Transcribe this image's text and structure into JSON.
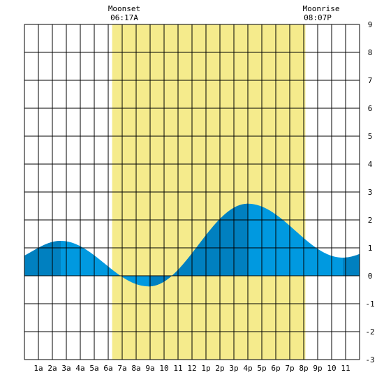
{
  "chart_data": {
    "type": "area",
    "title": "",
    "xlabel": "",
    "ylabel": "",
    "x_range_hours": [
      0,
      24
    ],
    "ylim": [
      -3,
      9
    ],
    "grid": true,
    "x_tick_labels": [
      "1a",
      "2a",
      "3a",
      "4a",
      "5a",
      "6a",
      "7a",
      "8a",
      "9a",
      "10",
      "11",
      "12",
      "1p",
      "2p",
      "3p",
      "4p",
      "5p",
      "6p",
      "7p",
      "8p",
      "9p",
      "10",
      "11"
    ],
    "y_tick_labels": [
      "9",
      "8",
      "7",
      "6",
      "5",
      "4",
      "3",
      "2",
      "1",
      "0",
      "-1",
      "-2",
      "-3"
    ],
    "moon": {
      "set_label": "Moonset",
      "set_time": "06:17A",
      "set_hour": 6.28,
      "rise_label": "Moonrise",
      "rise_time": "08:07P",
      "rise_hour": 20.12
    },
    "tide_extrema": [
      {
        "hour": -1.5,
        "value": 0.5
      },
      {
        "hour": 2.6,
        "value": 1.25
      },
      {
        "hour": 8.9,
        "value": -0.38
      },
      {
        "hour": 16.0,
        "value": 2.58
      },
      {
        "hour": 22.8,
        "value": 0.65
      },
      {
        "hour": 26.5,
        "value": 1.2
      }
    ],
    "dark_bands_hours": [
      [
        0,
        2.6
      ],
      [
        8.9,
        16.0
      ],
      [
        22.8,
        24
      ]
    ],
    "colors": {
      "moon_band": "#f5eb8c",
      "tide": "#0099e0",
      "tide_dark": "#0080c0",
      "grid": "#000000",
      "background": "#ffffff"
    }
  }
}
